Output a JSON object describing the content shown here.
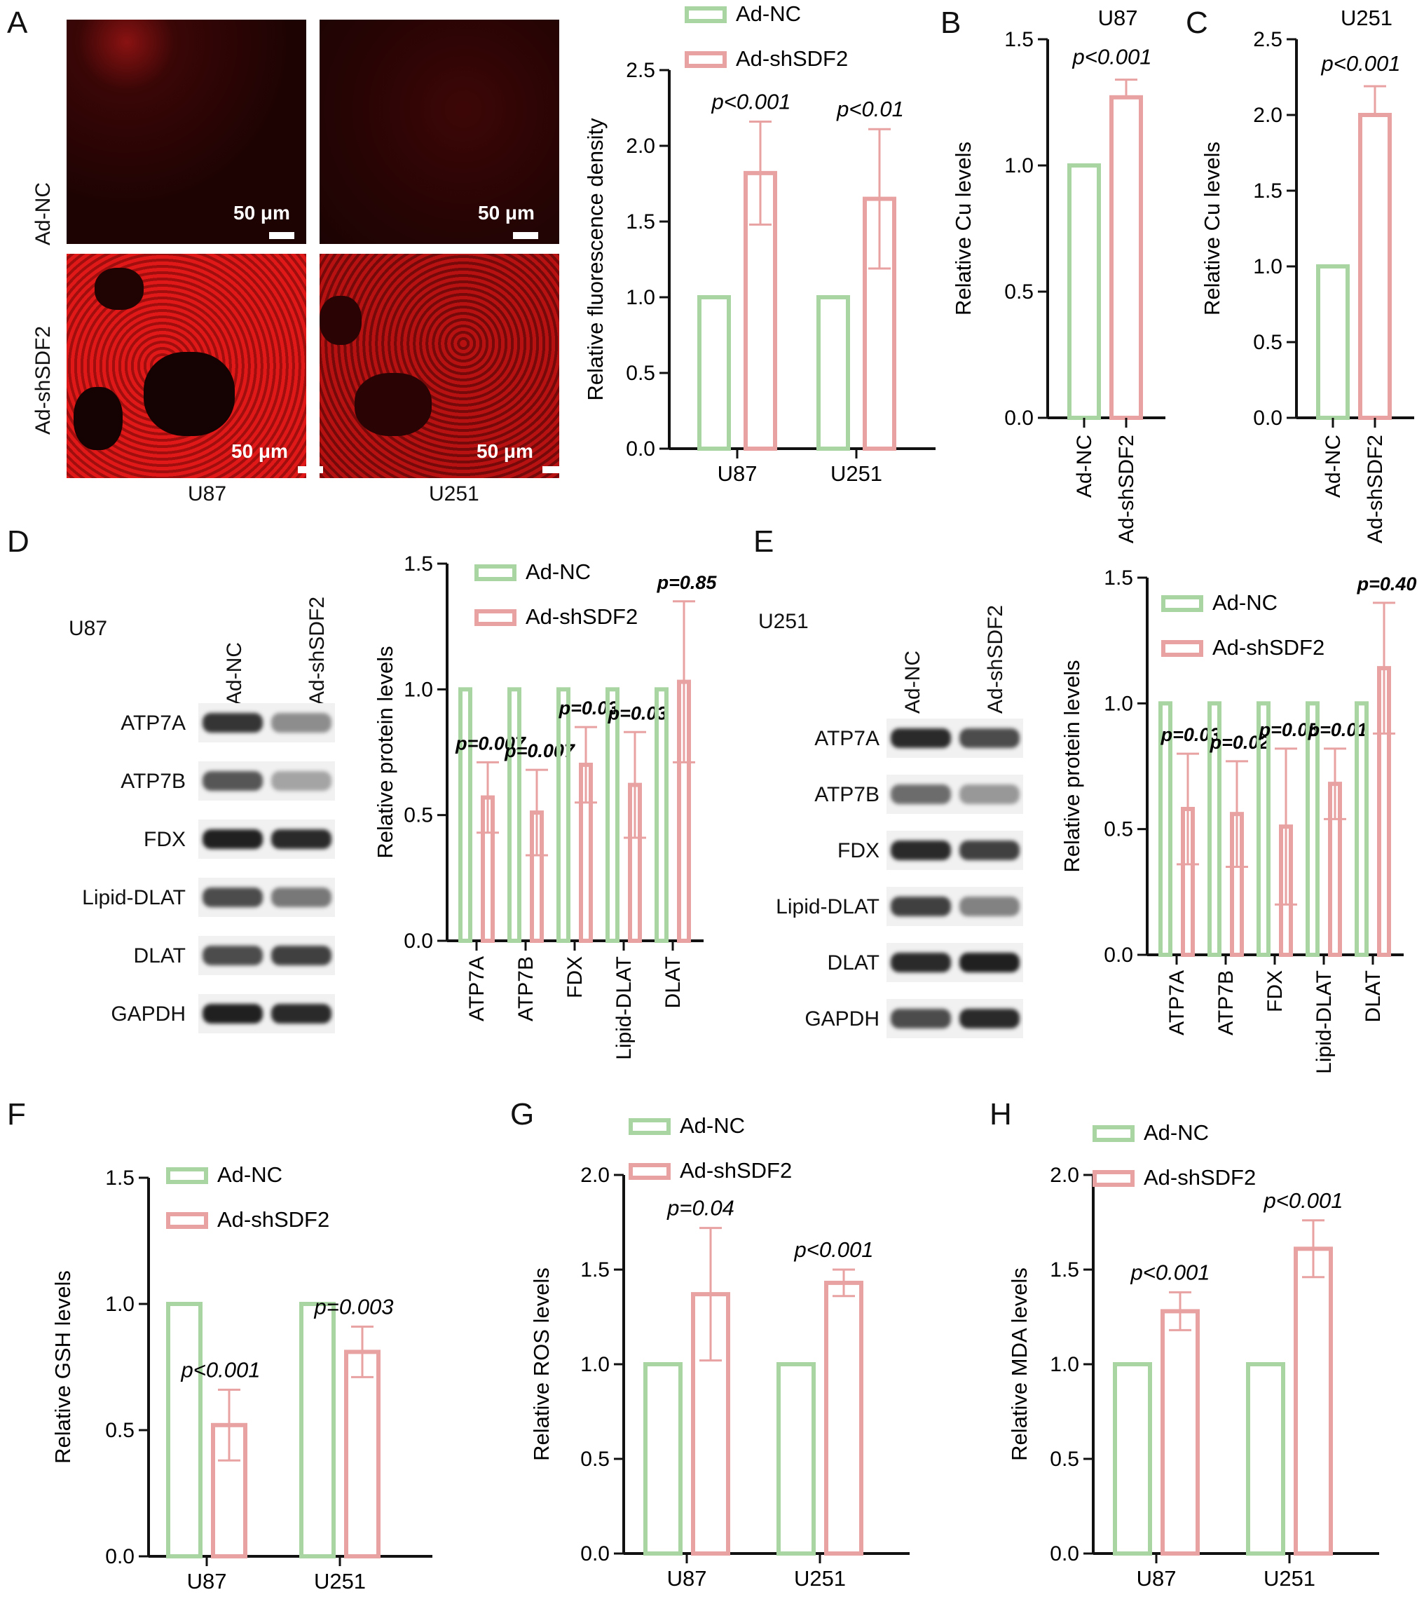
{
  "panels": {
    "a": {
      "letter": "A",
      "row_labels": [
        "Ad-NC",
        "Ad-shSDF2"
      ],
      "col_labels": [
        "U87",
        "U251"
      ],
      "scale_bar_label": "50 μm"
    },
    "b": {
      "letter": "B"
    },
    "c": {
      "letter": "C"
    },
    "d": {
      "letter": "D",
      "cell_line": "U87",
      "lane_labels": [
        "Ad-NC",
        "Ad-shSDF2"
      ],
      "bands": [
        "ATP7A",
        "ATP7B",
        "FDX",
        "Lipid-DLAT",
        "DLAT",
        "GAPDH"
      ]
    },
    "e": {
      "letter": "E",
      "cell_line": "U251",
      "lane_labels": [
        "Ad-NC",
        "Ad-shSDF2"
      ],
      "bands": [
        "ATP7A",
        "ATP7B",
        "FDX",
        "Lipid-DLAT",
        "DLAT",
        "GAPDH"
      ]
    },
    "f": {
      "letter": "F"
    },
    "g": {
      "letter": "G"
    },
    "h": {
      "letter": "H"
    }
  },
  "colors": {
    "ad_nc": "#a8d5a2",
    "ad_shsdf2": "#e8a2a2",
    "error": "#e8a2a2",
    "axis": "#111111"
  },
  "chart_data": [
    {
      "id": "a-chart",
      "type": "bar",
      "categories": [
        "U87",
        "U251"
      ],
      "series": [
        {
          "name": "Ad-NC",
          "values": [
            1.0,
            1.0
          ],
          "errors": [
            0,
            0
          ]
        },
        {
          "name": "Ad-shSDF2",
          "values": [
            1.82,
            1.65
          ],
          "errors": [
            0.34,
            0.46
          ]
        }
      ],
      "annotations": [
        "p<0.001",
        "p<0.01"
      ],
      "ylabel": "Relative fluorescence density",
      "ylim": [
        0,
        2.5
      ],
      "yticks": [
        0.0,
        0.5,
        1.0,
        1.5,
        2.0,
        2.5
      ],
      "legend": "top"
    },
    {
      "id": "b-chart",
      "type": "bar",
      "title": "U87",
      "categories": [
        "Ad-NC",
        "Ad-shSDF2"
      ],
      "values": [
        1.0,
        1.27
      ],
      "errors": [
        0,
        0.07
      ],
      "annotations": [
        "p<0.001"
      ],
      "ylabel": "Relative Cu levels",
      "ylim": [
        0,
        1.5
      ],
      "yticks": [
        0.0,
        0.5,
        1.0,
        1.5
      ]
    },
    {
      "id": "c-chart",
      "type": "bar",
      "title": "U251",
      "categories": [
        "Ad-NC",
        "Ad-shSDF2"
      ],
      "values": [
        1.0,
        2.0
      ],
      "errors": [
        0,
        0.19
      ],
      "annotations": [
        "p<0.001"
      ],
      "ylabel": "Relative Cu levels",
      "ylim": [
        0,
        2.5
      ],
      "yticks": [
        0.0,
        0.5,
        1.0,
        1.5,
        2.0,
        2.5
      ]
    },
    {
      "id": "d-chart",
      "type": "bar",
      "categories": [
        "ATP7A",
        "ATP7B",
        "FDX",
        "Lipid-DLAT",
        "DLAT"
      ],
      "series": [
        {
          "name": "Ad-NC",
          "values": [
            1.0,
            1.0,
            1.0,
            1.0,
            1.0
          ],
          "errors": [
            0,
            0,
            0,
            0,
            0
          ]
        },
        {
          "name": "Ad-shSDF2",
          "values": [
            0.57,
            0.51,
            0.7,
            0.62,
            1.03
          ],
          "errors": [
            0.14,
            0.17,
            0.15,
            0.21,
            0.32
          ]
        }
      ],
      "annotations": [
        "p=0.007",
        "p=0.007",
        "p=0.03",
        "p=0.03",
        "p=0.85"
      ],
      "ylabel": "Relative protein levels",
      "ylim": [
        0,
        1.5
      ],
      "yticks": [
        0.0,
        0.5,
        1.0,
        1.5
      ],
      "legend": "top-right"
    },
    {
      "id": "e-chart",
      "type": "bar",
      "categories": [
        "ATP7A",
        "ATP7B",
        "FDX",
        "Lipid-DLAT",
        "DLAT"
      ],
      "series": [
        {
          "name": "Ad-NC",
          "values": [
            1.0,
            1.0,
            1.0,
            1.0,
            1.0
          ],
          "errors": [
            0,
            0,
            0,
            0,
            0
          ]
        },
        {
          "name": "Ad-shSDF2",
          "values": [
            0.58,
            0.56,
            0.51,
            0.68,
            1.14
          ],
          "errors": [
            0.22,
            0.21,
            0.31,
            0.14,
            0.26
          ]
        }
      ],
      "annotations": [
        "p=0.03",
        "p=0.02",
        "p=0.05",
        "p=0.01",
        "p=0.40"
      ],
      "ylabel": "Relative protein levels",
      "ylim": [
        0,
        1.5
      ],
      "yticks": [
        0.0,
        0.5,
        1.0,
        1.5
      ],
      "legend": "top-left"
    },
    {
      "id": "f-chart",
      "type": "bar",
      "categories": [
        "U87",
        "U251"
      ],
      "series": [
        {
          "name": "Ad-NC",
          "values": [
            1.0,
            1.0
          ],
          "errors": [
            0,
            0
          ]
        },
        {
          "name": "Ad-shSDF2",
          "values": [
            0.52,
            0.81
          ],
          "errors": [
            0.14,
            0.1
          ]
        }
      ],
      "annotations": [
        "p<0.001",
        "p=0.003"
      ],
      "ylabel": "Relative GSH levels",
      "ylim": [
        0,
        1.5
      ],
      "yticks": [
        0.0,
        0.5,
        1.0,
        1.5
      ],
      "legend": "top"
    },
    {
      "id": "g-chart",
      "type": "bar",
      "categories": [
        "U87",
        "U251"
      ],
      "series": [
        {
          "name": "Ad-NC",
          "values": [
            1.0,
            1.0
          ],
          "errors": [
            0,
            0
          ]
        },
        {
          "name": "Ad-shSDF2",
          "values": [
            1.37,
            1.43
          ],
          "errors": [
            0.35,
            0.07
          ]
        }
      ],
      "annotations": [
        "p=0.04",
        "p<0.001"
      ],
      "ylabel": "Relative ROS levels",
      "ylim": [
        0,
        2.0
      ],
      "yticks": [
        0.0,
        0.5,
        1.0,
        1.5,
        2.0
      ],
      "legend": "top"
    },
    {
      "id": "h-chart",
      "type": "bar",
      "categories": [
        "U87",
        "U251"
      ],
      "series": [
        {
          "name": "Ad-NC",
          "values": [
            1.0,
            1.0
          ],
          "errors": [
            0,
            0
          ]
        },
        {
          "name": "Ad-shSDF2",
          "values": [
            1.28,
            1.61
          ],
          "errors": [
            0.1,
            0.15
          ]
        }
      ],
      "annotations": [
        "p<0.001",
        "p<0.001"
      ],
      "ylabel": "Relative MDA levels",
      "ylim": [
        0,
        2.0
      ],
      "yticks": [
        0.0,
        0.5,
        1.0,
        1.5,
        2.0
      ],
      "legend": "top"
    }
  ]
}
